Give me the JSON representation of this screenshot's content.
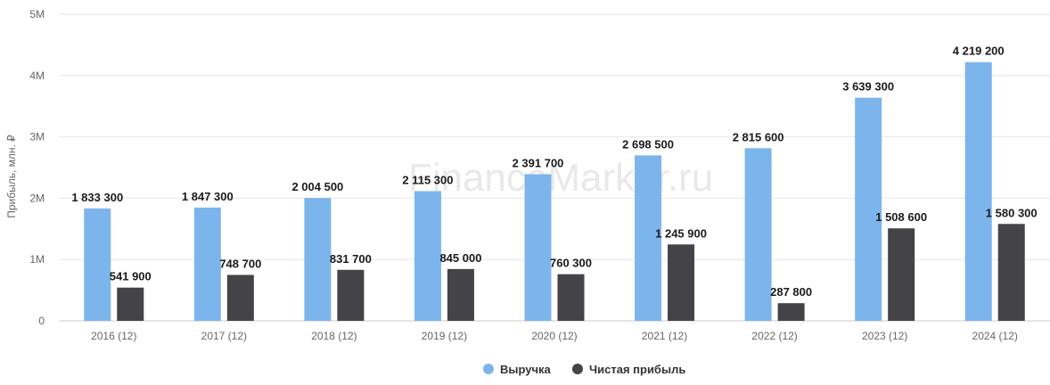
{
  "chart_data": {
    "type": "bar",
    "categories": [
      "2016 (12)",
      "2017 (12)",
      "2018 (12)",
      "2019 (12)",
      "2020 (12)",
      "2021 (12)",
      "2022 (12)",
      "2023 (12)",
      "2024 (12)"
    ],
    "series": [
      {
        "name": "Выручка",
        "color": "#7cb5ec",
        "values": [
          1833300,
          1847300,
          2004500,
          2115300,
          2391700,
          2698500,
          2815600,
          3639300,
          4219200
        ],
        "labels": [
          "1 833 300",
          "1 847 300",
          "2 004 500",
          "2 115 300",
          "2 391 700",
          "2 698 500",
          "2 815 600",
          "3 639 300",
          "4 219 200"
        ]
      },
      {
        "name": "Чистая прибыль",
        "color": "#434348",
        "values": [
          541900,
          748700,
          831700,
          845000,
          760300,
          1245900,
          287800,
          1508600,
          1580300
        ],
        "labels": [
          "541 900",
          "748 700",
          "831 700",
          "845 000",
          "760 300",
          "1 245 900",
          "287 800",
          "1 508 600",
          "1 580 300"
        ]
      }
    ],
    "ylabel": "Прибыль, млн. ₽",
    "ylim": [
      0,
      5000000
    ],
    "yticks": [
      0,
      1000000,
      2000000,
      3000000,
      4000000,
      5000000
    ],
    "ytick_labels": [
      "0",
      "1M",
      "2M",
      "3M",
      "4M",
      "5M"
    ],
    "grid": true,
    "legend_position": "bottom-center",
    "watermark": "FinanceMarker.ru"
  }
}
